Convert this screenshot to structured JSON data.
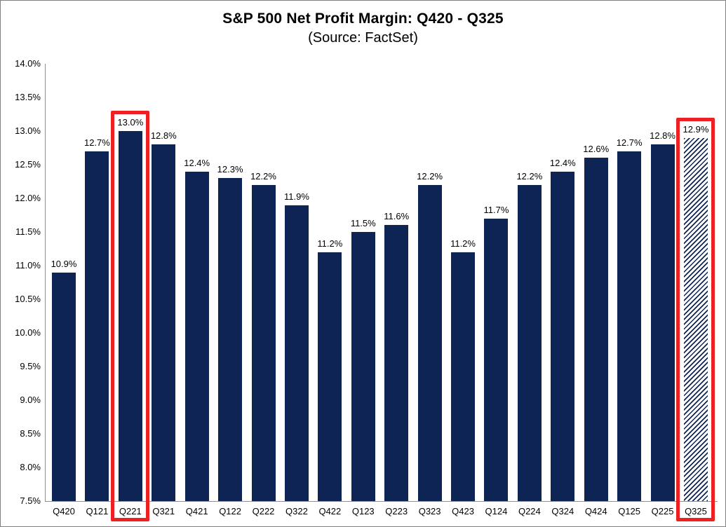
{
  "chart_data": {
    "type": "bar",
    "title": "S&P 500 Net Profit Margin: Q420 - Q325",
    "subtitle": "(Source: FactSet)",
    "xlabel": "",
    "ylabel": "",
    "ylim": [
      7.5,
      14.0
    ],
    "ytick_step": 0.5,
    "grid": false,
    "legend_position": "none",
    "bar_color": "#0E2455",
    "highlight_color": "#ED2024",
    "axis_color": "#909090",
    "yticks": [
      {
        "value": 7.5,
        "label": "7.5%"
      },
      {
        "value": 8.0,
        "label": "8.0%"
      },
      {
        "value": 8.5,
        "label": "8.5%"
      },
      {
        "value": 9.0,
        "label": "9.0%"
      },
      {
        "value": 9.5,
        "label": "9.5%"
      },
      {
        "value": 10.0,
        "label": "10.0%"
      },
      {
        "value": 10.5,
        "label": "10.5%"
      },
      {
        "value": 11.0,
        "label": "11.0%"
      },
      {
        "value": 11.5,
        "label": "11.5%"
      },
      {
        "value": 12.0,
        "label": "12.0%"
      },
      {
        "value": 12.5,
        "label": "12.5%"
      },
      {
        "value": 13.0,
        "label": "13.0%"
      },
      {
        "value": 13.5,
        "label": "13.5%"
      },
      {
        "value": 14.0,
        "label": "14.0%"
      }
    ],
    "bars": [
      {
        "category": "Q420",
        "value": 10.9,
        "label": "10.9%",
        "hatched": false,
        "highlighted": false
      },
      {
        "category": "Q121",
        "value": 12.7,
        "label": "12.7%",
        "hatched": false,
        "highlighted": false
      },
      {
        "category": "Q221",
        "value": 13.0,
        "label": "13.0%",
        "hatched": false,
        "highlighted": true
      },
      {
        "category": "Q321",
        "value": 12.8,
        "label": "12.8%",
        "hatched": false,
        "highlighted": false
      },
      {
        "category": "Q421",
        "value": 12.4,
        "label": "12.4%",
        "hatched": false,
        "highlighted": false
      },
      {
        "category": "Q122",
        "value": 12.3,
        "label": "12.3%",
        "hatched": false,
        "highlighted": false
      },
      {
        "category": "Q222",
        "value": 12.2,
        "label": "12.2%",
        "hatched": false,
        "highlighted": false
      },
      {
        "category": "Q322",
        "value": 11.9,
        "label": "11.9%",
        "hatched": false,
        "highlighted": false
      },
      {
        "category": "Q422",
        "value": 11.2,
        "label": "11.2%",
        "hatched": false,
        "highlighted": false
      },
      {
        "category": "Q123",
        "value": 11.5,
        "label": "11.5%",
        "hatched": false,
        "highlighted": false
      },
      {
        "category": "Q223",
        "value": 11.6,
        "label": "11.6%",
        "hatched": false,
        "highlighted": false
      },
      {
        "category": "Q323",
        "value": 12.2,
        "label": "12.2%",
        "hatched": false,
        "highlighted": false
      },
      {
        "category": "Q423",
        "value": 11.2,
        "label": "11.2%",
        "hatched": false,
        "highlighted": false
      },
      {
        "category": "Q124",
        "value": 11.7,
        "label": "11.7%",
        "hatched": false,
        "highlighted": false
      },
      {
        "category": "Q224",
        "value": 12.2,
        "label": "12.2%",
        "hatched": false,
        "highlighted": false
      },
      {
        "category": "Q324",
        "value": 12.4,
        "label": "12.4%",
        "hatched": false,
        "highlighted": false
      },
      {
        "category": "Q424",
        "value": 12.6,
        "label": "12.6%",
        "hatched": false,
        "highlighted": false
      },
      {
        "category": "Q125",
        "value": 12.7,
        "label": "12.7%",
        "hatched": false,
        "highlighted": false
      },
      {
        "category": "Q225",
        "value": 12.8,
        "label": "12.8%",
        "hatched": false,
        "highlighted": false
      },
      {
        "category": "Q325",
        "value": 12.9,
        "label": "12.9%",
        "hatched": true,
        "highlighted": true
      }
    ]
  }
}
